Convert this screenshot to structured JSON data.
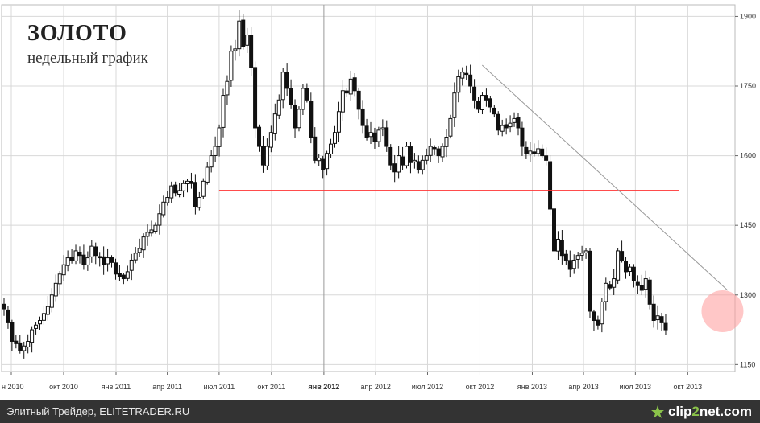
{
  "header": {
    "title": "ЗОЛОТО",
    "subtitle": "недельный график"
  },
  "footer": {
    "source_text": "Элитный Трейдер, ELITETRADER.RU",
    "logo_text_main": "clip",
    "logo_text_accent": "2",
    "logo_text_tail": "net.com"
  },
  "colors": {
    "candle": "#111111",
    "support_line": "#ff3333",
    "trend_line": "#999999",
    "highlight": "#ff9999",
    "grid": "#d8d8d8"
  },
  "chart_data": {
    "type": "candlestick",
    "title": "ЗОЛОТО",
    "subtitle": "недельный график",
    "x_tick_labels": [
      "н 2010",
      "окт 2010",
      "янв 2011",
      "апр 2011",
      "июл 2011",
      "окт 2011",
      "янв 2012",
      "апр 2012",
      "июл 2012",
      "окт 2012",
      "янв 2013",
      "апр 2013",
      "июл 2013",
      "окт 2013"
    ],
    "y_ticks": [
      1150,
      1300,
      1450,
      1600,
      1750,
      1900
    ],
    "ylim": [
      1135,
      1925
    ],
    "x_start": "2010-06-14",
    "x_end": "2013-12-23",
    "grid": true,
    "y_axis_side": "right",
    "support_level": {
      "value": 1525,
      "from": "2011-07-01",
      "to": "2013-09-15"
    },
    "trend_line": {
      "start": {
        "date": "2012-10-05",
        "value": 1795
      },
      "end": {
        "date": "2013-12-10",
        "value": 1310
      }
    },
    "highlight": {
      "date": "2013-12-01",
      "value": 1265
    },
    "weekly_close": [
      [
        0,
        1270
      ],
      [
        1,
        1240
      ],
      [
        2,
        1200
      ],
      [
        3,
        1195
      ],
      [
        4,
        1180
      ],
      [
        5,
        1190
      ],
      [
        6,
        1200
      ],
      [
        7,
        1225
      ],
      [
        8,
        1235
      ],
      [
        9,
        1245
      ],
      [
        10,
        1260
      ],
      [
        11,
        1275
      ],
      [
        12,
        1300
      ],
      [
        13,
        1325
      ],
      [
        14,
        1345
      ],
      [
        15,
        1365
      ],
      [
        16,
        1380
      ],
      [
        17,
        1375
      ],
      [
        18,
        1395
      ],
      [
        19,
        1385
      ],
      [
        20,
        1365
      ],
      [
        21,
        1380
      ],
      [
        22,
        1405
      ],
      [
        23,
        1385
      ],
      [
        24,
        1380
      ],
      [
        25,
        1365
      ],
      [
        26,
        1380
      ],
      [
        27,
        1370
      ],
      [
        28,
        1345
      ],
      [
        29,
        1340
      ],
      [
        30,
        1335
      ],
      [
        31,
        1350
      ],
      [
        32,
        1375
      ],
      [
        33,
        1390
      ],
      [
        34,
        1400
      ],
      [
        35,
        1425
      ],
      [
        36,
        1435
      ],
      [
        37,
        1440
      ],
      [
        38,
        1450
      ],
      [
        39,
        1475
      ],
      [
        40,
        1500
      ],
      [
        41,
        1510
      ],
      [
        42,
        1535
      ],
      [
        43,
        1520
      ],
      [
        44,
        1525
      ],
      [
        45,
        1540
      ],
      [
        46,
        1545
      ],
      [
        47,
        1540
      ],
      [
        48,
        1490
      ],
      [
        49,
        1510
      ],
      [
        50,
        1545
      ],
      [
        51,
        1575
      ],
      [
        52,
        1600
      ],
      [
        53,
        1620
      ],
      [
        54,
        1660
      ],
      [
        55,
        1730
      ],
      [
        56,
        1760
      ],
      [
        57,
        1825
      ],
      [
        58,
        1830
      ],
      [
        59,
        1890
      ],
      [
        60,
        1835
      ],
      [
        61,
        1860
      ],
      [
        62,
        1790
      ],
      [
        63,
        1660
      ],
      [
        64,
        1620
      ],
      [
        65,
        1580
      ],
      [
        66,
        1620
      ],
      [
        67,
        1650
      ],
      [
        68,
        1690
      ],
      [
        69,
        1720
      ],
      [
        70,
        1780
      ],
      [
        71,
        1745
      ],
      [
        72,
        1710
      ],
      [
        73,
        1660
      ],
      [
        74,
        1700
      ],
      [
        75,
        1745
      ],
      [
        76,
        1720
      ],
      [
        77,
        1640
      ],
      [
        78,
        1590
      ],
      [
        79,
        1595
      ],
      [
        80,
        1570
      ],
      [
        81,
        1605
      ],
      [
        82,
        1625
      ],
      [
        83,
        1650
      ],
      [
        84,
        1695
      ],
      [
        85,
        1740
      ],
      [
        86,
        1735
      ],
      [
        87,
        1765
      ],
      [
        88,
        1740
      ],
      [
        89,
        1700
      ],
      [
        90,
        1665
      ],
      [
        91,
        1640
      ],
      [
        92,
        1650
      ],
      [
        93,
        1630
      ],
      [
        94,
        1655
      ],
      [
        95,
        1660
      ],
      [
        96,
        1620
      ],
      [
        97,
        1580
      ],
      [
        98,
        1565
      ],
      [
        99,
        1600
      ],
      [
        100,
        1580
      ],
      [
        101,
        1620
      ],
      [
        102,
        1585
      ],
      [
        103,
        1590
      ],
      [
        104,
        1570
      ],
      [
        105,
        1590
      ],
      [
        106,
        1600
      ],
      [
        107,
        1620
      ],
      [
        108,
        1615
      ],
      [
        109,
        1600
      ],
      [
        110,
        1620
      ],
      [
        111,
        1640
      ],
      [
        112,
        1680
      ],
      [
        113,
        1735
      ],
      [
        114,
        1770
      ],
      [
        115,
        1780
      ],
      [
        116,
        1775
      ],
      [
        117,
        1750
      ],
      [
        118,
        1720
      ],
      [
        119,
        1700
      ],
      [
        120,
        1730
      ],
      [
        121,
        1720
      ],
      [
        122,
        1705
      ],
      [
        123,
        1690
      ],
      [
        124,
        1655
      ],
      [
        125,
        1665
      ],
      [
        126,
        1660
      ],
      [
        127,
        1670
      ],
      [
        128,
        1680
      ],
      [
        129,
        1660
      ],
      [
        130,
        1620
      ],
      [
        131,
        1605
      ],
      [
        132,
        1610
      ],
      [
        133,
        1605
      ],
      [
        134,
        1615
      ],
      [
        135,
        1600
      ],
      [
        136,
        1590
      ],
      [
        137,
        1485
      ],
      [
        138,
        1395
      ],
      [
        139,
        1420
      ],
      [
        140,
        1385
      ],
      [
        141,
        1375
      ],
      [
        142,
        1355
      ],
      [
        143,
        1375
      ],
      [
        144,
        1385
      ],
      [
        145,
        1390
      ],
      [
        146,
        1395
      ],
      [
        147,
        1265
      ],
      [
        148,
        1245
      ],
      [
        149,
        1235
      ],
      [
        150,
        1285
      ],
      [
        151,
        1325
      ],
      [
        152,
        1315
      ],
      [
        153,
        1335
      ],
      [
        154,
        1395
      ],
      [
        155,
        1375
      ],
      [
        156,
        1350
      ],
      [
        157,
        1360
      ],
      [
        158,
        1330
      ],
      [
        159,
        1320
      ],
      [
        160,
        1310
      ],
      [
        161,
        1335
      ],
      [
        162,
        1280
      ],
      [
        163,
        1245
      ],
      [
        164,
        1255
      ],
      [
        165,
        1240
      ],
      [
        166,
        1225
      ]
    ]
  }
}
